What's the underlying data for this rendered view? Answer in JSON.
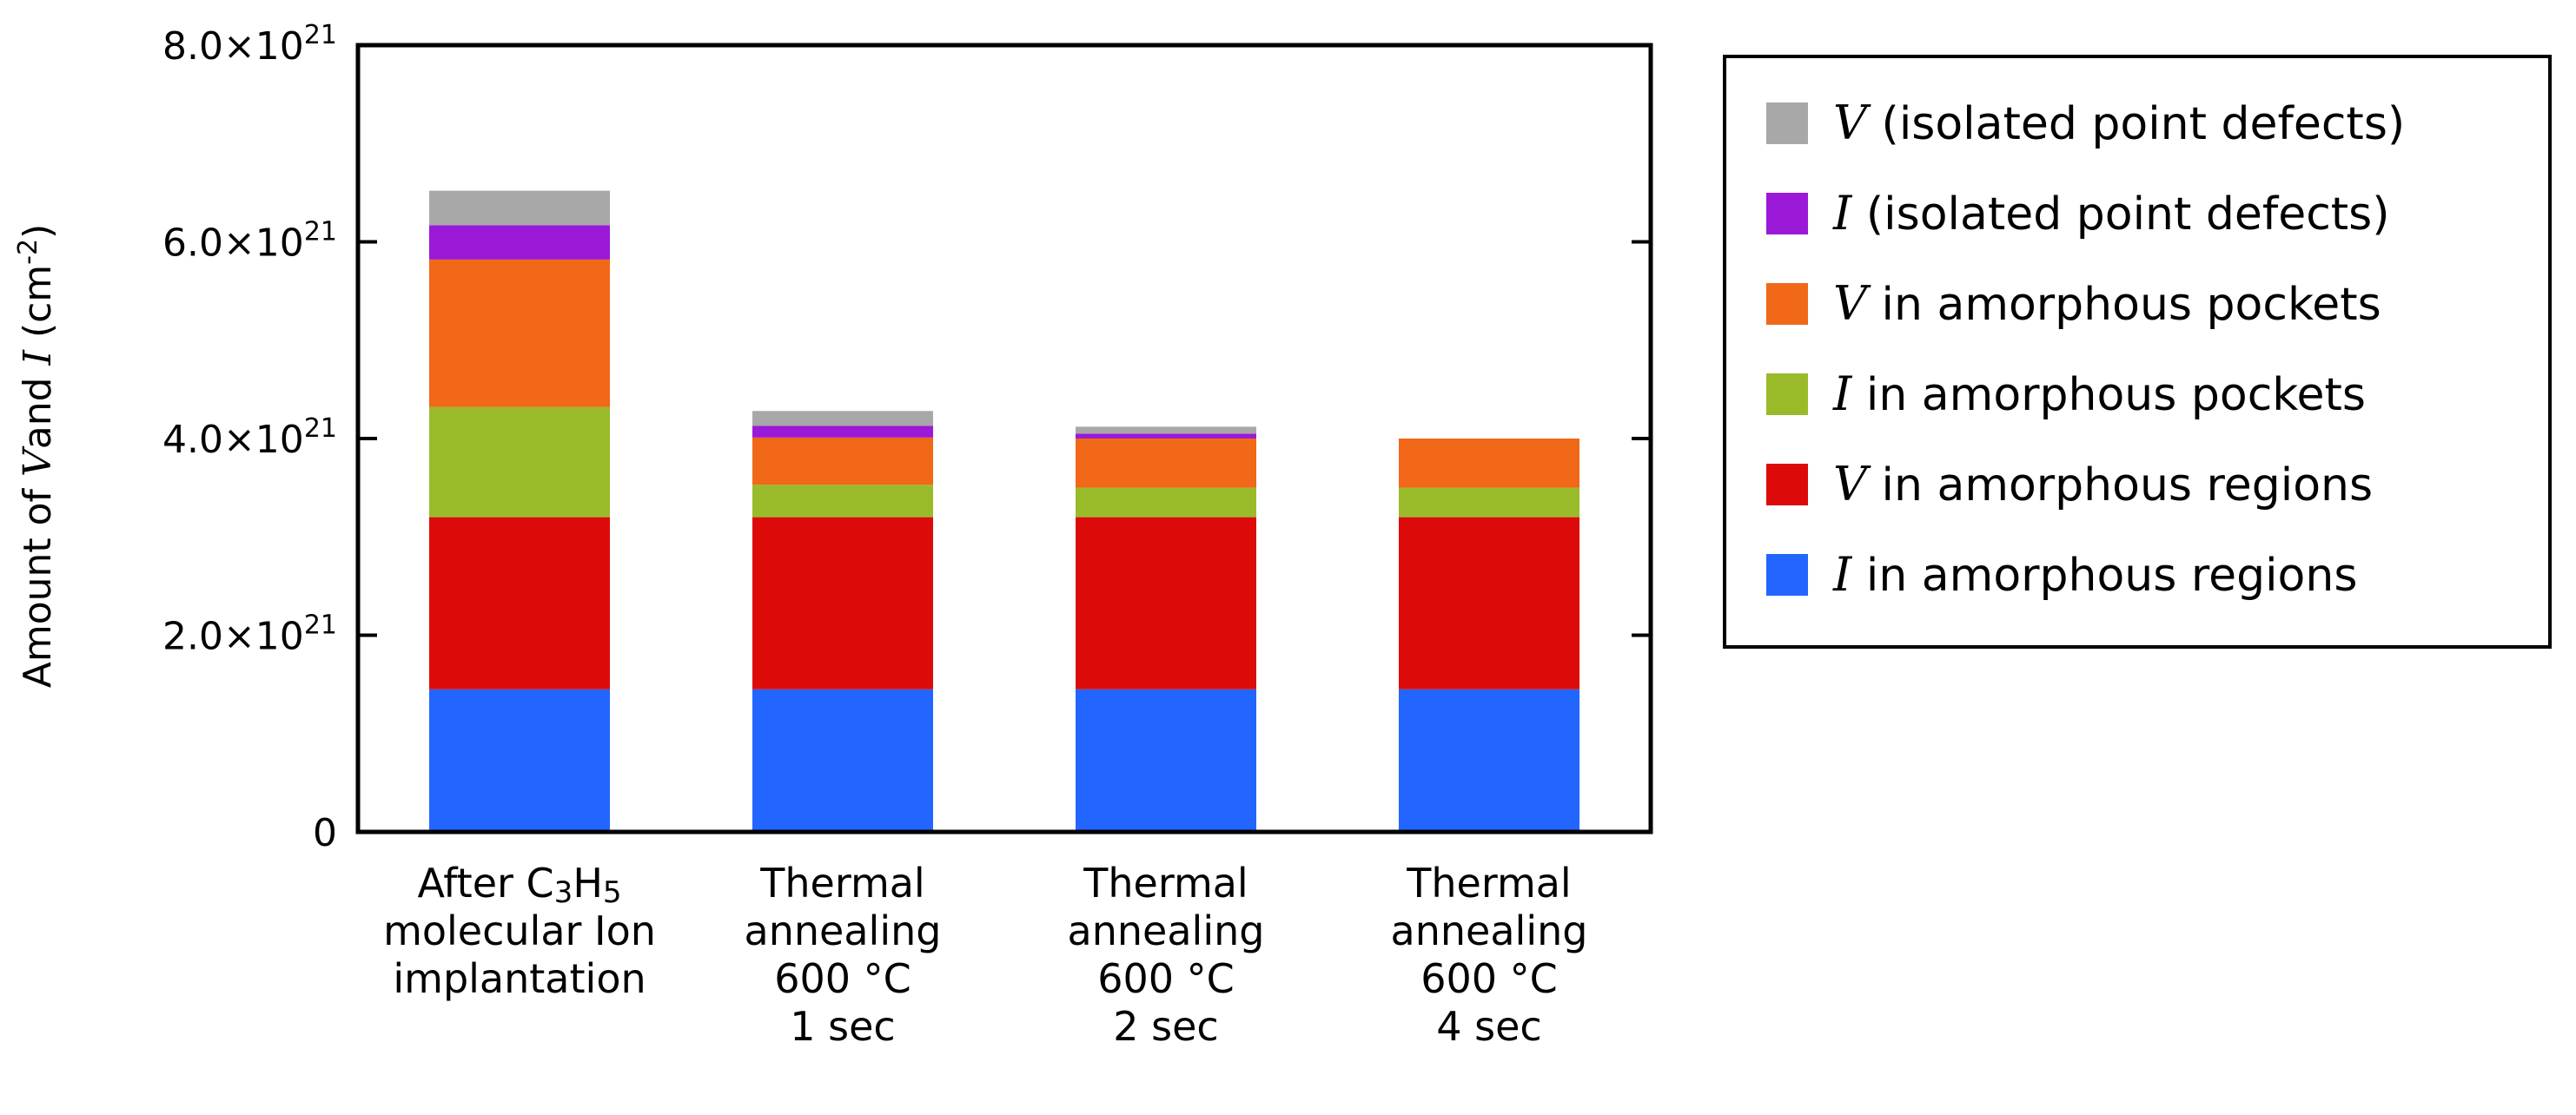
{
  "chart_data": {
    "type": "bar",
    "stacked": true,
    "title": "",
    "ylabel": {
      "prefix": "Amount of ",
      "var1": "V",
      "mid": "and ",
      "var2": "I",
      "unit_open": " (cm",
      "unit_sup": "-2",
      "unit_close": ")"
    },
    "ylim": [
      0,
      8e+21
    ],
    "yticks": [
      {
        "value": 0,
        "base": "0",
        "sup": ""
      },
      {
        "value": 2e+21,
        "base": "2.0×10",
        "sup": "21"
      },
      {
        "value": 4e+21,
        "base": "4.0×10",
        "sup": "21"
      },
      {
        "value": 6e+21,
        "base": "6.0×10",
        "sup": "21"
      },
      {
        "value": 8e+21,
        "base": "8.0×10",
        "sup": "21"
      }
    ],
    "categories": [
      {
        "lines": [
          "After C3H5",
          "molecular Ion",
          "implantation"
        ]
      },
      {
        "lines": [
          "Thermal",
          "annealing",
          "600 °C",
          "1 sec"
        ]
      },
      {
        "lines": [
          "Thermal",
          "annealing",
          "600 °C",
          "2 sec"
        ]
      },
      {
        "lines": [
          "Thermal",
          "annealing",
          "600 °C",
          "4 sec"
        ]
      }
    ],
    "first_category_parts": {
      "a": "After C",
      "s1": "3",
      "b": "H",
      "s2": "5"
    },
    "series": [
      {
        "name": "I in amorphous regions",
        "var": "I",
        "text": "in amorphous regions",
        "color": "#2266ff",
        "values": [
          1.45e+21,
          1.45e+21,
          1.45e+21,
          1.45e+21
        ]
      },
      {
        "name": "V in amorphous regions",
        "var": "V",
        "text": "in amorphous regions",
        "color": "#dd0a0a",
        "values": [
          1.75e+21,
          1.75e+21,
          1.75e+21,
          1.75e+21
        ]
      },
      {
        "name": "I in amorphous pockets",
        "var": "I",
        "text": "in amorphous pockets",
        "color": "#99bb2a",
        "values": [
          1.12e+21,
          3.3e+20,
          3e+20,
          3e+20
        ]
      },
      {
        "name": "V in amorphous pockets",
        "var": "V",
        "text": "in amorphous pockets",
        "color": "#f06818",
        "values": [
          1.5e+21,
          4.8e+20,
          5e+20,
          5e+20
        ]
      },
      {
        "name": "I (isolated point defects)",
        "var": "I",
        "text": "(isolated point defects)",
        "color": "#9a1ad8",
        "values": [
          3.5e+20,
          1.2e+20,
          5e+19,
          0.0
        ]
      },
      {
        "name": "V (isolated point defects)",
        "var": "V",
        "text": "(isolated point defects)",
        "color": "#a8a8a8",
        "values": [
          3.5e+20,
          1.5e+20,
          7e+19,
          0.0
        ]
      }
    ],
    "legend": {
      "position": "right",
      "order": [
        5,
        4,
        3,
        2,
        1,
        0
      ]
    }
  }
}
